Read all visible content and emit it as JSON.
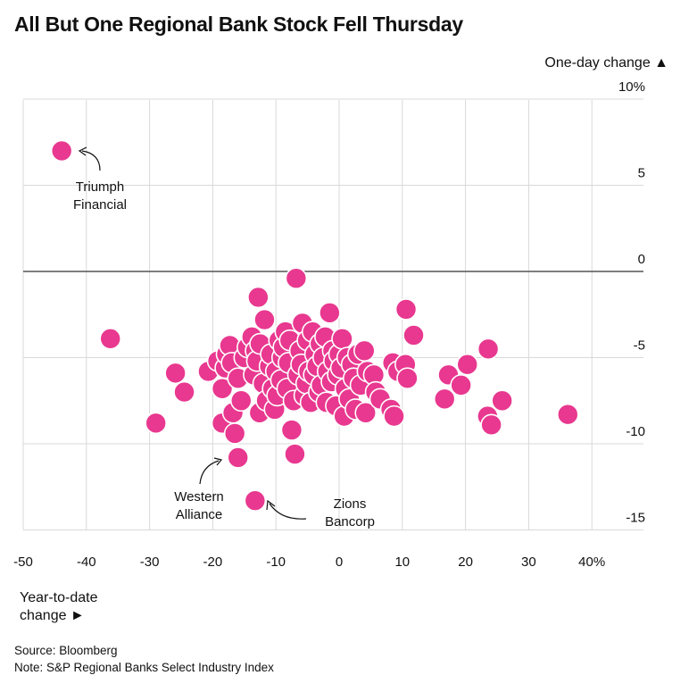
{
  "chart_data": {
    "type": "scatter",
    "title": "All But One Regional Bank Stock Fell Thursday",
    "xlabel": "Year-to-date change ►",
    "ylabel": "One-day change ▲",
    "xlim": [
      -50,
      45
    ],
    "ylim": [
      -15,
      10
    ],
    "x_ticks": [
      -50,
      -40,
      -30,
      -20,
      -10,
      0,
      10,
      20,
      30,
      40
    ],
    "x_tick_labels": [
      "-50",
      "-40",
      "-30",
      "-20",
      "-10",
      "0",
      "10",
      "20",
      "30",
      "40%"
    ],
    "y_ticks": [
      10,
      5,
      0,
      -5,
      -10,
      -15
    ],
    "y_tick_labels": [
      "10%",
      "5",
      "0",
      "-5",
      "-10",
      "-15"
    ],
    "marker_color": "#e8388f",
    "grid_color": "#d9d9d9",
    "zero_line_color": "#555555",
    "points": [
      {
        "x": -43.9,
        "y": 7.0,
        "label": "Triumph Financial"
      },
      {
        "x": -16.0,
        "y": -10.8,
        "label": "Western Alliance"
      },
      {
        "x": -13.3,
        "y": -13.3,
        "label": "Zions Bancorp"
      },
      {
        "x": -36.2,
        "y": -3.9
      },
      {
        "x": -29.0,
        "y": -8.8
      },
      {
        "x": -25.9,
        "y": -5.9
      },
      {
        "x": -24.5,
        "y": -7.0
      },
      {
        "x": -20.7,
        "y": -5.8
      },
      {
        "x": -19.2,
        "y": -5.2
      },
      {
        "x": -18.5,
        "y": -6.8
      },
      {
        "x": -18.5,
        "y": -8.8
      },
      {
        "x": -18.0,
        "y": -5.6
      },
      {
        "x": -17.8,
        "y": -4.8
      },
      {
        "x": -17.3,
        "y": -4.3
      },
      {
        "x": -17.0,
        "y": -5.3
      },
      {
        "x": -16.8,
        "y": -8.2
      },
      {
        "x": -16.5,
        "y": -9.4
      },
      {
        "x": -16.0,
        "y": -6.2
      },
      {
        "x": -15.5,
        "y": -7.5
      },
      {
        "x": -15.0,
        "y": -5.0
      },
      {
        "x": -14.5,
        "y": -4.4
      },
      {
        "x": -13.8,
        "y": -3.8
      },
      {
        "x": -13.5,
        "y": -6.0
      },
      {
        "x": -13.2,
        "y": -4.6
      },
      {
        "x": -13.0,
        "y": -5.2
      },
      {
        "x": -12.8,
        "y": -1.5
      },
      {
        "x": -12.6,
        "y": -8.2
      },
      {
        "x": -12.5,
        "y": -4.2
      },
      {
        "x": -12.0,
        "y": -6.5
      },
      {
        "x": -11.8,
        "y": -2.8
      },
      {
        "x": -11.5,
        "y": -7.5
      },
      {
        "x": -11.0,
        "y": -5.5
      },
      {
        "x": -10.8,
        "y": -4.8
      },
      {
        "x": -10.5,
        "y": -6.8
      },
      {
        "x": -10.2,
        "y": -8.0
      },
      {
        "x": -10.0,
        "y": -5.8
      },
      {
        "x": -9.8,
        "y": -7.2
      },
      {
        "x": -9.5,
        "y": -4.0
      },
      {
        "x": -9.2,
        "y": -6.3
      },
      {
        "x": -9.0,
        "y": -5.0
      },
      {
        "x": -8.8,
        "y": -4.4
      },
      {
        "x": -8.5,
        "y": -3.5
      },
      {
        "x": -8.2,
        "y": -6.8
      },
      {
        "x": -8.0,
        "y": -5.3
      },
      {
        "x": -7.8,
        "y": -4.0
      },
      {
        "x": -7.5,
        "y": -9.2
      },
      {
        "x": -7.2,
        "y": -7.5
      },
      {
        "x": -7.0,
        "y": -10.6
      },
      {
        "x": -6.8,
        "y": -0.4
      },
      {
        "x": -6.5,
        "y": -6.0
      },
      {
        "x": -6.2,
        "y": -4.6
      },
      {
        "x": -6.0,
        "y": -5.4
      },
      {
        "x": -5.8,
        "y": -3.0
      },
      {
        "x": -5.5,
        "y": -7.2
      },
      {
        "x": -5.2,
        "y": -6.5
      },
      {
        "x": -5.0,
        "y": -4.0
      },
      {
        "x": -4.8,
        "y": -5.8
      },
      {
        "x": -4.5,
        "y": -7.6
      },
      {
        "x": -4.2,
        "y": -3.5
      },
      {
        "x": -4.0,
        "y": -6.0
      },
      {
        "x": -3.8,
        "y": -4.8
      },
      {
        "x": -3.5,
        "y": -5.5
      },
      {
        "x": -3.2,
        "y": -7.0
      },
      {
        "x": -3.0,
        "y": -4.2
      },
      {
        "x": -2.8,
        "y": -6.6
      },
      {
        "x": -2.5,
        "y": -5.0
      },
      {
        "x": -2.2,
        "y": -3.8
      },
      {
        "x": -2.0,
        "y": -7.6
      },
      {
        "x": -1.8,
        "y": -5.8
      },
      {
        "x": -1.5,
        "y": -2.4
      },
      {
        "x": -1.2,
        "y": -6.4
      },
      {
        "x": -1.0,
        "y": -4.6
      },
      {
        "x": -0.8,
        "y": -5.2
      },
      {
        "x": -0.5,
        "y": -7.8
      },
      {
        "x": -0.2,
        "y": -6.0
      },
      {
        "x": 0.0,
        "y": -4.8
      },
      {
        "x": 0.3,
        "y": -5.6
      },
      {
        "x": 0.5,
        "y": -3.9
      },
      {
        "x": 0.8,
        "y": -8.4
      },
      {
        "x": 1.0,
        "y": -6.8
      },
      {
        "x": 1.3,
        "y": -5.0
      },
      {
        "x": 1.6,
        "y": -7.4
      },
      {
        "x": 2.0,
        "y": -5.4
      },
      {
        "x": 2.3,
        "y": -6.2
      },
      {
        "x": 2.6,
        "y": -8.0
      },
      {
        "x": 3.0,
        "y": -4.8
      },
      {
        "x": 3.4,
        "y": -6.6
      },
      {
        "x": 4.0,
        "y": -4.6
      },
      {
        "x": 4.2,
        "y": -8.2
      },
      {
        "x": 4.5,
        "y": -5.8
      },
      {
        "x": 5.5,
        "y": -6.0
      },
      {
        "x": 5.8,
        "y": -7.0
      },
      {
        "x": 6.5,
        "y": -7.4
      },
      {
        "x": 8.2,
        "y": -8.0
      },
      {
        "x": 8.5,
        "y": -5.3
      },
      {
        "x": 8.7,
        "y": -8.4
      },
      {
        "x": 9.3,
        "y": -5.8
      },
      {
        "x": 10.5,
        "y": -5.4
      },
      {
        "x": 10.8,
        "y": -6.2
      },
      {
        "x": 10.6,
        "y": -2.2
      },
      {
        "x": 11.8,
        "y": -3.7
      },
      {
        "x": 16.7,
        "y": -7.4
      },
      {
        "x": 17.3,
        "y": -6.0
      },
      {
        "x": 19.3,
        "y": -6.6
      },
      {
        "x": 20.3,
        "y": -5.4
      },
      {
        "x": 23.6,
        "y": -4.5
      },
      {
        "x": 23.5,
        "y": -8.4
      },
      {
        "x": 24.1,
        "y": -8.9
      },
      {
        "x": 25.8,
        "y": -7.5
      },
      {
        "x": 36.2,
        "y": -8.3
      }
    ]
  },
  "annotations": {
    "triumph_line1": "Triumph",
    "triumph_line2": "Financial",
    "western_line1": "Western",
    "western_line2": "Alliance",
    "zions_line1": "Zions",
    "zions_line2": "Bancorp"
  },
  "footer": {
    "source": "Source: Bloomberg",
    "note": "Note: S&P Regional Banks Select Industry Index"
  }
}
